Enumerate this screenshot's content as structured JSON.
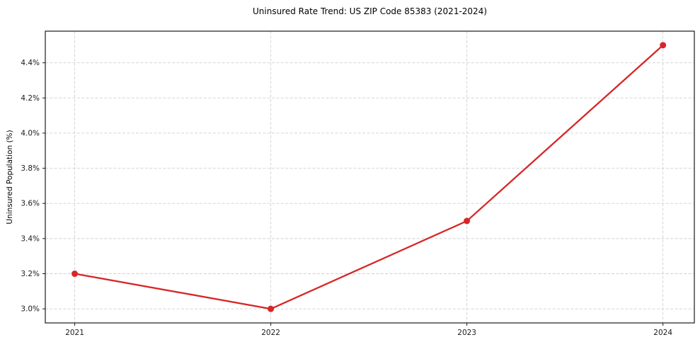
{
  "title": "Uninsured Rate Trend: US ZIP Code 85383 (2021-2024)",
  "chart_data": {
    "type": "line",
    "title": "Uninsured Rate Trend: US ZIP Code 85383 (2021-2024)",
    "xlabel": "",
    "ylabel": "Uninsured Population (%)",
    "x": [
      2021,
      2022,
      2023,
      2024
    ],
    "values": [
      3.2,
      3.0,
      3.5,
      4.5
    ],
    "x_tick_labels": [
      "2021",
      "2022",
      "2023",
      "2024"
    ],
    "y_tick_values": [
      3.0,
      3.2,
      3.4,
      3.6,
      3.8,
      4.0,
      4.2,
      4.4
    ],
    "y_tick_labels": [
      "3.0%",
      "3.2%",
      "3.4%",
      "3.6%",
      "3.8%",
      "4.0%",
      "4.2%",
      "4.4%"
    ],
    "xlim": [
      2020.85,
      2024.16
    ],
    "ylim": [
      2.92,
      4.58
    ],
    "grid": true,
    "grid_style": "dashed",
    "legend": false,
    "line_color": "#d62728",
    "marker_color": "#d62728",
    "grid_color": "#d0d0d0",
    "spine_color": "#1a1a1a",
    "background_color": "#ffffff"
  }
}
